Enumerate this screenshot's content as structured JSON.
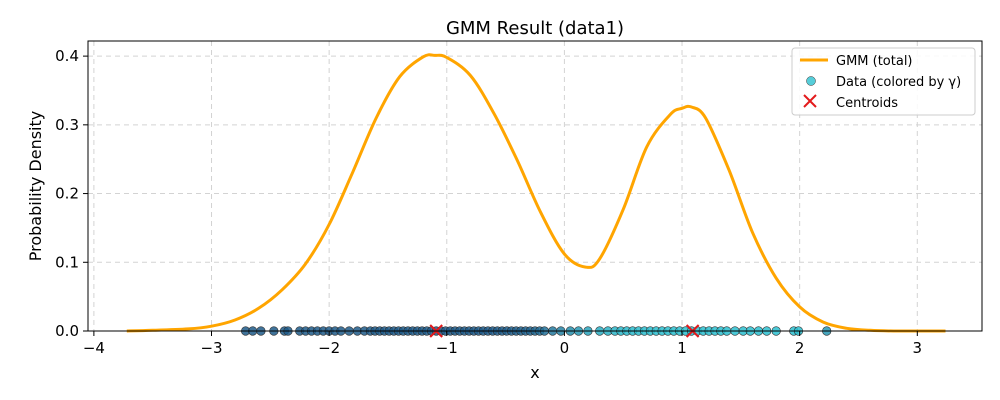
{
  "chart_data": {
    "type": "line",
    "title": "GMM Result (data1)",
    "xlabel": "x",
    "ylabel": "Probability Density",
    "xlim": [
      -4.05,
      3.55
    ],
    "ylim": [
      0,
      0.422
    ],
    "x_ticks": [
      -4,
      -3,
      -2,
      -1,
      0,
      1,
      2,
      3
    ],
    "x_tick_labels": [
      "−4",
      "−3",
      "−2",
      "−1",
      "0",
      "1",
      "2",
      "3"
    ],
    "y_ticks": [
      0.0,
      0.1,
      0.2,
      0.3,
      0.4
    ],
    "y_tick_labels": [
      "0.0",
      "0.1",
      "0.2",
      "0.3",
      "0.4"
    ],
    "grid": true,
    "legend_position": "top-right",
    "legend": [
      "GMM (total)",
      "Data (colored by γ)",
      "Centroids"
    ],
    "colors": {
      "curve": "#ffa500",
      "centroid": "#e31a1c",
      "point_low_gamma": "#1f5a88",
      "point_high_gamma": "#2cc0d0",
      "grid": "#d3d3d3"
    },
    "gmm_total": {
      "name": "GMM (total)",
      "x": [
        -3.72,
        -3.5,
        -3.2,
        -3.0,
        -2.8,
        -2.6,
        -2.4,
        -2.2,
        -2.0,
        -1.8,
        -1.6,
        -1.4,
        -1.2,
        -1.1,
        -1.0,
        -0.8,
        -0.6,
        -0.4,
        -0.2,
        0.0,
        0.18,
        0.3,
        0.5,
        0.7,
        0.9,
        1.0,
        1.08,
        1.2,
        1.4,
        1.6,
        1.8,
        2.0,
        2.2,
        2.4,
        2.6,
        2.8,
        3.0,
        3.24
      ],
      "y": [
        0.0,
        0.001,
        0.003,
        0.007,
        0.016,
        0.033,
        0.06,
        0.098,
        0.155,
        0.231,
        0.31,
        0.37,
        0.399,
        0.401,
        0.398,
        0.372,
        0.317,
        0.248,
        0.172,
        0.112,
        0.093,
        0.105,
        0.177,
        0.268,
        0.315,
        0.324,
        0.326,
        0.31,
        0.234,
        0.143,
        0.077,
        0.035,
        0.013,
        0.004,
        0.001,
        0.0,
        0.0,
        0.0
      ]
    },
    "data_points": {
      "name": "Data (colored by γ)",
      "x": [
        -2.71,
        -2.65,
        -2.58,
        -2.47,
        -2.38,
        -2.35,
        -2.25,
        -2.2,
        -2.15,
        -2.1,
        -2.05,
        -2.0,
        -1.95,
        -1.9,
        -1.83,
        -1.76,
        -1.7,
        -1.65,
        -1.61,
        -1.57,
        -1.53,
        -1.49,
        -1.45,
        -1.41,
        -1.37,
        -1.33,
        -1.29,
        -1.25,
        -1.21,
        -1.17,
        -1.13,
        -1.09,
        -1.05,
        -1.01,
        -0.97,
        -0.93,
        -0.89,
        -0.85,
        -0.81,
        -0.77,
        -0.73,
        -0.69,
        -0.65,
        -0.61,
        -0.57,
        -0.53,
        -0.49,
        -0.45,
        -0.41,
        -0.37,
        -0.33,
        -0.29,
        -0.25,
        -0.21,
        -0.17,
        -0.1,
        -0.03,
        0.05,
        0.12,
        0.2,
        0.3,
        0.37,
        0.43,
        0.48,
        0.53,
        0.58,
        0.63,
        0.68,
        0.73,
        0.78,
        0.83,
        0.88,
        0.93,
        0.98,
        1.03,
        1.08,
        1.13,
        1.18,
        1.23,
        1.28,
        1.33,
        1.38,
        1.45,
        1.52,
        1.58,
        1.65,
        1.72,
        1.8,
        1.95,
        1.99,
        2.23
      ],
      "gamma": [
        0.0,
        0.0,
        0.0,
        0.0,
        0.0,
        0.0,
        0.0,
        0.0,
        0.0,
        0.0,
        0.0,
        0.0,
        0.0,
        0.0,
        0.0,
        0.0,
        0.0,
        0.0,
        0.0,
        0.0,
        0.0,
        0.0,
        0.0,
        0.0,
        0.0,
        0.0,
        0.0,
        0.0,
        0.0,
        0.0,
        0.0,
        0.0,
        0.0,
        0.0,
        0.0,
        0.0,
        0.0,
        0.0,
        0.0,
        0.0,
        0.0,
        0.01,
        0.01,
        0.01,
        0.02,
        0.02,
        0.03,
        0.04,
        0.05,
        0.06,
        0.08,
        0.1,
        0.13,
        0.17,
        0.22,
        0.3,
        0.4,
        0.52,
        0.62,
        0.72,
        0.82,
        0.87,
        0.9,
        0.92,
        0.94,
        0.95,
        0.96,
        0.97,
        0.97,
        0.98,
        0.98,
        0.99,
        0.99,
        0.99,
        0.99,
        0.99,
        1.0,
        1.0,
        1.0,
        1.0,
        1.0,
        1.0,
        1.0,
        1.0,
        1.0,
        1.0,
        1.0,
        1.0,
        1.0,
        1.0,
        0.6
      ]
    },
    "centroids": {
      "name": "Centroids",
      "x": [
        -1.09,
        1.09
      ],
      "y": [
        0.0,
        0.0
      ]
    }
  }
}
